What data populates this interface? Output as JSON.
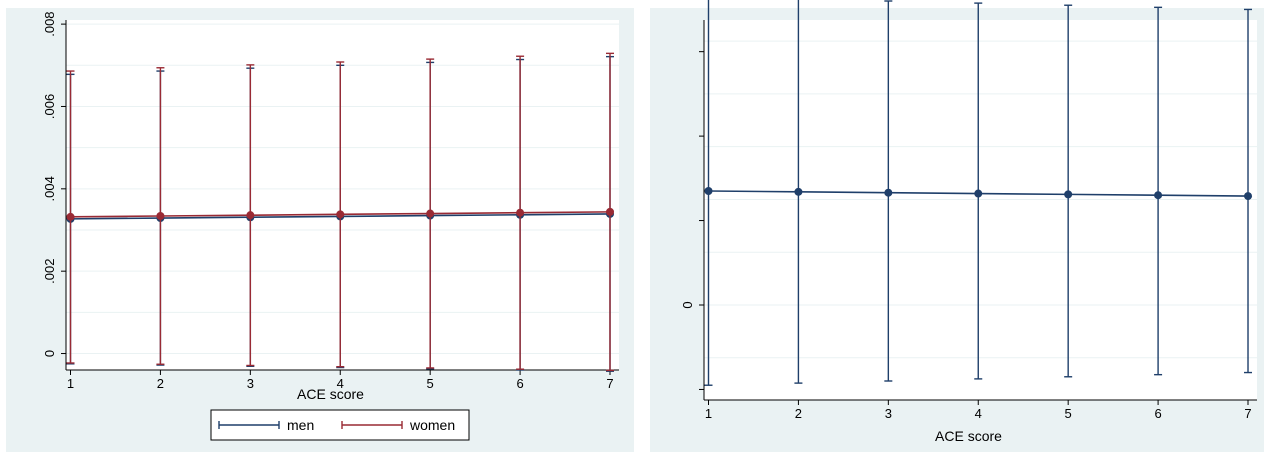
{
  "chart_data": [
    {
      "type": "line",
      "xlabel": "ACE score",
      "ylabel": "",
      "x": [
        1,
        2,
        3,
        4,
        5,
        6,
        7
      ],
      "xticks": [
        "1",
        "2",
        "3",
        "4",
        "5",
        "6",
        "7"
      ],
      "xlim": [
        0.95,
        7.1
      ],
      "ylim": [
        -0.0004,
        0.0081
      ],
      "yticks": [
        {
          "value": 0,
          "label": "0"
        },
        {
          "value": 0.002,
          "label": ".002"
        },
        {
          "value": 0.004,
          "label": ".004"
        },
        {
          "value": 0.006,
          "label": ".006"
        },
        {
          "value": 0.008,
          "label": ".008"
        }
      ],
      "grid": true,
      "legend": "bottom",
      "series": [
        {
          "name": "men",
          "color": "#1f3f6a",
          "values": [
            0.00327,
            0.00329,
            0.00331,
            0.00333,
            0.00335,
            0.00337,
            0.00339
          ],
          "lower": [
            -0.00025,
            -0.00028,
            -0.00031,
            -0.00034,
            -0.00037,
            -0.0004,
            -0.00043
          ],
          "upper": [
            0.00678,
            0.00686,
            0.00693,
            0.007,
            0.00707,
            0.00714,
            0.00721
          ]
        },
        {
          "name": "women",
          "color": "#992a34",
          "values": [
            0.00332,
            0.00334,
            0.00336,
            0.00338,
            0.0034,
            0.00342,
            0.00344
          ],
          "lower": [
            -0.00023,
            -0.00026,
            -0.00029,
            -0.00032,
            -0.00035,
            -0.00038,
            -0.00041
          ],
          "upper": [
            0.00686,
            0.00694,
            0.00701,
            0.00708,
            0.00715,
            0.00722,
            0.00729
          ]
        }
      ]
    },
    {
      "type": "line",
      "xlabel": "ACE score",
      "ylabel": "",
      "x": [
        1,
        2,
        3,
        4,
        5,
        6,
        7
      ],
      "xticks": [
        "1",
        "2",
        "3",
        "4",
        "5",
        "6",
        "7"
      ],
      "xlim": [
        0.95,
        7.1
      ],
      "ylim": [
        -0.0045,
        0.0135
      ],
      "yticks": [
        {
          "value": 0,
          "label": "0"
        }
      ],
      "grid": true,
      "legend": "none",
      "series": [
        {
          "color": "#1f3f6a",
          "values": [
            0.0054,
            0.00536,
            0.00532,
            0.00528,
            0.00524,
            0.0052,
            0.00516
          ],
          "lower": [
            -0.0038,
            -0.0037,
            -0.0036,
            -0.0035,
            -0.0034,
            -0.0033,
            -0.0032
          ],
          "upper": [
            0.0146,
            0.0145,
            0.0144,
            0.0143,
            0.0142,
            0.0141,
            0.014
          ]
        }
      ]
    }
  ]
}
